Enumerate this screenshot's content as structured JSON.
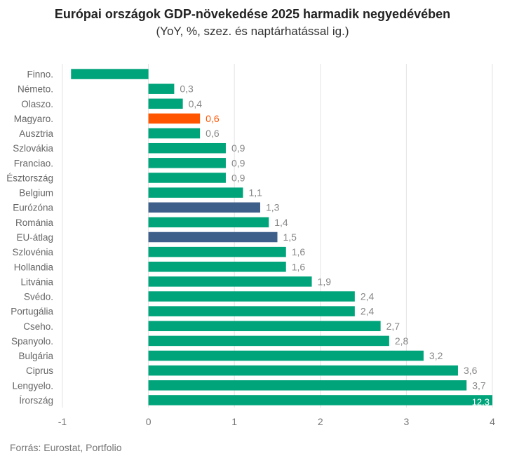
{
  "chart_data": {
    "type": "bar",
    "orientation": "horizontal",
    "title": "Európai országok GDP-növekedése 2025 harmadik negyedévében",
    "subtitle": "(YoY, %, szez. és naptárhatással ig.)",
    "categories": [
      "Finno.",
      "Németo.",
      "Olaszo.",
      "Magyaro.",
      "Ausztria",
      "Szlovákia",
      "Franciao.",
      "Észtország",
      "Belgium",
      "Eurózóna",
      "Románia",
      "EU-átlag",
      "Szlovénia",
      "Hollandia",
      "Litvánia",
      "Svédo.",
      "Portugália",
      "Cseho.",
      "Spanyolo.",
      "Bulgária",
      "Ciprus",
      "Lengyelo.",
      "Írország"
    ],
    "values": [
      -0.9,
      0.3,
      0.4,
      0.6,
      0.6,
      0.9,
      0.9,
      0.9,
      1.1,
      1.3,
      1.4,
      1.5,
      1.6,
      1.6,
      1.9,
      2.4,
      2.4,
      2.7,
      2.8,
      3.2,
      3.6,
      3.7,
      12.3
    ],
    "data_labels": [
      "",
      "0,3",
      "0,4",
      "0,6",
      "0,6",
      "0,9",
      "0,9",
      "0,9",
      "1,1",
      "1,3",
      "1,4",
      "1,5",
      "1,6",
      "1,6",
      "1,9",
      "2,4",
      "2,4",
      "2,7",
      "2,8",
      "3,2",
      "3,6",
      "3,7",
      "12,3"
    ],
    "highlight": {
      "Magyaro.": "#ff5500",
      "Eurózóna": "#3d5f8a",
      "EU-átlag": "#3d5f8a"
    },
    "default_color": "#00a47a",
    "xlim": [
      -1,
      4
    ],
    "xticks": [
      -1,
      0,
      1,
      2,
      3,
      4
    ],
    "grid": true,
    "xlabel": "",
    "ylabel": ""
  },
  "source": "Forrás: Eurostat, Portfolio"
}
